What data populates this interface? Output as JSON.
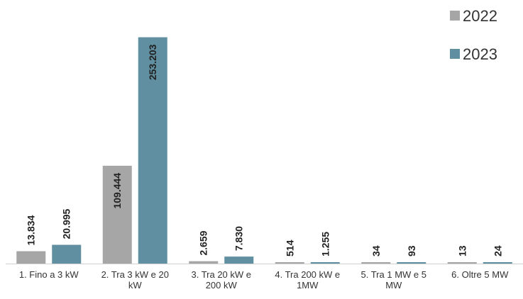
{
  "chart_data": {
    "type": "bar",
    "title": "",
    "xlabel": "",
    "ylabel": "",
    "ylim": [
      0,
      260000
    ],
    "grid": false,
    "legend_position": "top-right",
    "categories": [
      "1. Fino a 3 kW",
      "2. Tra 3 kW e 20 kW",
      "3. Tra 20 kW e 200 kW",
      "4. Tra 200 kW e 1MW",
      "5. Tra 1 MW e 5 MW",
      "6. Oltre 5 MW"
    ],
    "category_lines": [
      [
        "1. Fino a 3 kW"
      ],
      [
        "2. Tra 3 kW e 20",
        "kW"
      ],
      [
        "3. Tra 20 kW e",
        "200 kW"
      ],
      [
        "4. Tra 200 kW e",
        "1MW"
      ],
      [
        "5. Tra 1 MW e 5",
        "MW"
      ],
      [
        "6. Oltre 5 MW"
      ]
    ],
    "series": [
      {
        "name": "2022",
        "color": "#a6a6a6",
        "values": [
          13834,
          109444,
          2659,
          514,
          34,
          13
        ],
        "labels": [
          "13.834",
          "109.444",
          "2.659",
          "514",
          "34",
          "13"
        ]
      },
      {
        "name": "2023",
        "color": "#5f8fa0",
        "values": [
          20995,
          253203,
          7830,
          1255,
          93,
          24
        ],
        "labels": [
          "20.995",
          "253.203",
          "7.830",
          "1.255",
          "93",
          "24"
        ]
      }
    ]
  }
}
